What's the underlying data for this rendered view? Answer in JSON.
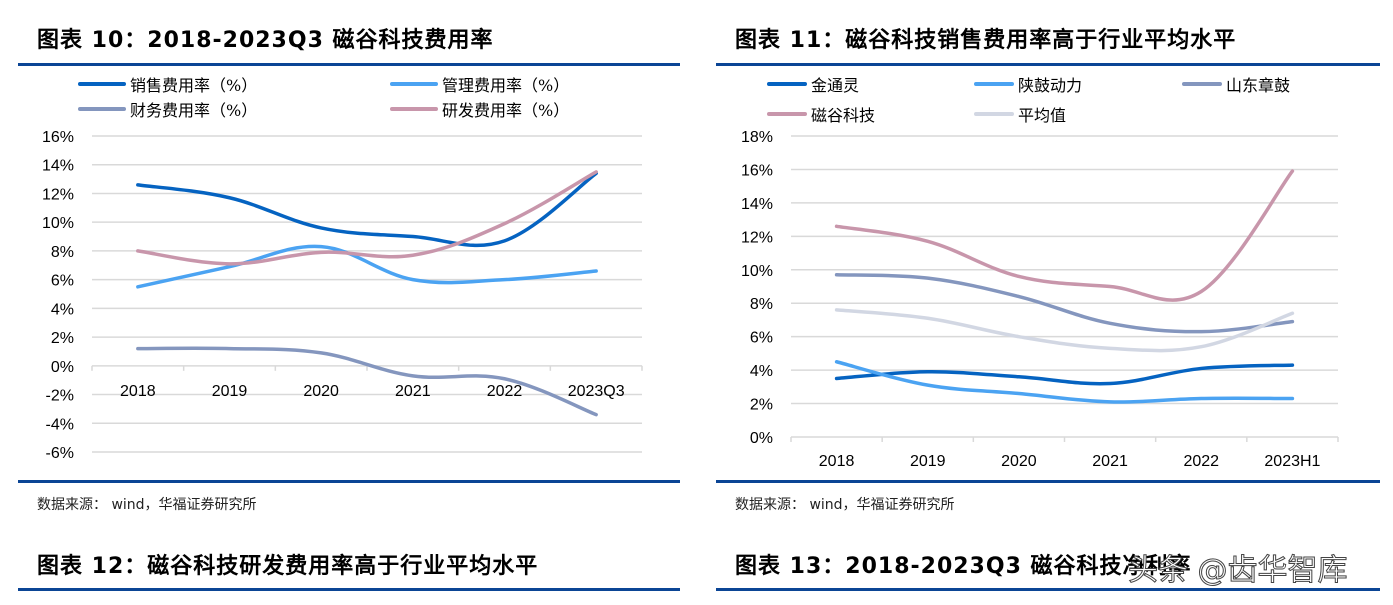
{
  "figures": {
    "fig10": {
      "title": "图表 10：2018-2023Q3 磁谷科技费用率",
      "source": "数据来源： wind，华福证券研究所"
    },
    "fig11": {
      "title": "图表 11：磁谷科技销售费用率高于行业平均水平",
      "source": "数据来源： wind，华福证券研究所"
    },
    "fig12": {
      "title": "图表 12：磁谷科技研发费用率高于行业平均水平"
    },
    "fig13": {
      "title": "图表 13：2018-2023Q3 磁谷科技净利率"
    }
  },
  "watermark": "头条 @齿华智库",
  "chart_data": [
    {
      "id": "fig10",
      "type": "line",
      "title": "2018-2023Q3 磁谷科技费用率",
      "categories": [
        "2018",
        "2019",
        "2020",
        "2021",
        "2022",
        "2023Q3"
      ],
      "ylim": [
        -6,
        16
      ],
      "ytick_step": 2,
      "ytick_labels": [
        "16%",
        "14%",
        "12%",
        "10%",
        "8%",
        "6%",
        "4%",
        "2%",
        "0%",
        "-2%",
        "-4%",
        "-6%"
      ],
      "xlabel": "",
      "ylabel": "",
      "grid": true,
      "legend_position": "top",
      "smooth": true,
      "series": [
        {
          "name": "销售费用率（%）",
          "color": "#0563c1",
          "values": [
            12.6,
            11.7,
            9.6,
            9.0,
            8.7,
            13.4
          ]
        },
        {
          "name": "管理费用率（%）",
          "color": "#4ba3f2",
          "values": [
            5.5,
            6.9,
            8.3,
            6.0,
            6.0,
            6.6
          ]
        },
        {
          "name": "财务费用率（%）",
          "color": "#8496be",
          "values": [
            1.2,
            1.2,
            0.9,
            -0.7,
            -0.9,
            -3.4
          ]
        },
        {
          "name": "研发费用率（%）",
          "color": "#c896ab",
          "values": [
            8.0,
            7.1,
            7.9,
            7.7,
            9.9,
            13.5
          ]
        }
      ]
    },
    {
      "id": "fig11",
      "type": "line",
      "title": "磁谷科技销售费用率高于行业平均水平",
      "categories": [
        "2018",
        "2019",
        "2020",
        "2021",
        "2022",
        "2023H1"
      ],
      "ylim": [
        0,
        18
      ],
      "ytick_step": 2,
      "ytick_labels": [
        "18%",
        "16%",
        "14%",
        "12%",
        "10%",
        "8%",
        "6%",
        "4%",
        "2%",
        "0%"
      ],
      "xlabel": "",
      "ylabel": "",
      "grid": true,
      "legend_position": "top",
      "smooth": true,
      "series": [
        {
          "name": "金通灵",
          "color": "#0563c1",
          "values": [
            3.5,
            3.9,
            3.6,
            3.2,
            4.1,
            4.3
          ]
        },
        {
          "name": "陕鼓动力",
          "color": "#4ba3f2",
          "values": [
            4.5,
            3.1,
            2.6,
            2.1,
            2.3,
            2.3
          ]
        },
        {
          "name": "山东章鼓",
          "color": "#8496be",
          "values": [
            9.7,
            9.5,
            8.4,
            6.8,
            6.3,
            6.9
          ]
        },
        {
          "name": "磁谷科技",
          "color": "#c896ab",
          "values": [
            12.6,
            11.7,
            9.6,
            9.0,
            8.7,
            15.9
          ]
        },
        {
          "name": "平均值",
          "color": "#d2d7e3",
          "values": [
            7.6,
            7.1,
            6.0,
            5.3,
            5.4,
            7.4
          ]
        }
      ]
    }
  ]
}
